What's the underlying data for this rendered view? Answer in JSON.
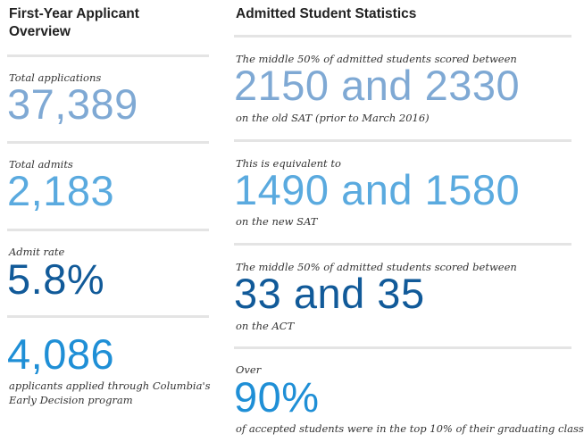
{
  "left": {
    "title_line1": "First-Year Applicant",
    "title_line2": "Overview",
    "stats": [
      {
        "label": "Total applications",
        "value": "37,389"
      },
      {
        "label": "Total admits",
        "value": "2,183"
      },
      {
        "label": "Admit rate",
        "value": "5.8%"
      },
      {
        "value": "4,086",
        "note_line1": "applicants applied through Columbia's",
        "note_line2": "Early Decision program"
      }
    ]
  },
  "right": {
    "title": "Admitted Student Statistics",
    "stats": [
      {
        "label": "The middle 50% of admitted students scored between",
        "value": "2150 and 2330",
        "note": "on the old SAT (prior to March 2016)"
      },
      {
        "label": "This is equivalent to",
        "value": "1490 and 1580",
        "note": "on the new SAT"
      },
      {
        "label": "The middle 50% of admitted students scored between",
        "value": "33 and 35",
        "note": "on the ACT"
      },
      {
        "label": "Over",
        "value": "90%",
        "note": "of accepted students were in the top 10% of their graduating class"
      }
    ]
  },
  "colors": {
    "light_blue": "#7fa9d4",
    "sky_blue": "#5aaadf",
    "dark_blue": "#115a99",
    "bright_blue": "#1f8fd6",
    "divider": "#e4e4e4"
  }
}
